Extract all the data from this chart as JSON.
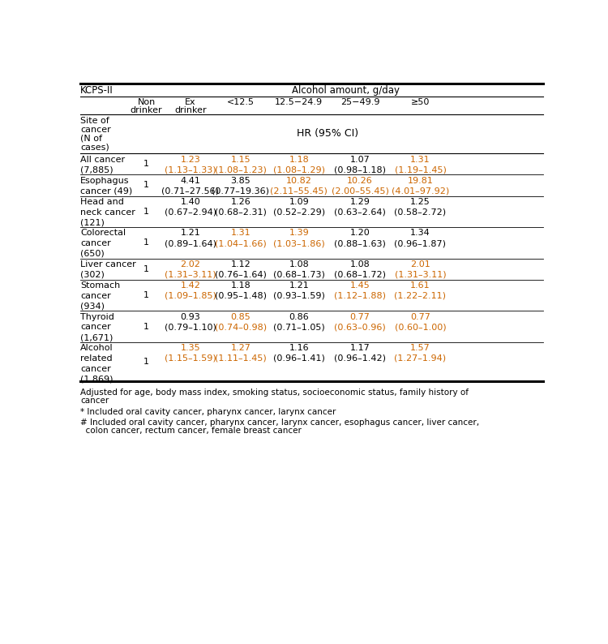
{
  "title_left": "KCPS-II",
  "title_right": "Alcohol amount, g/day",
  "col_headers_line1": [
    "Non",
    "Ex",
    "<12.5",
    "12.5−24.9",
    "25−49.9",
    "≥50"
  ],
  "col_headers_line2": [
    "drinker",
    "drinker",
    "",
    "",
    "",
    ""
  ],
  "subheader_left": "Site of\ncancer\n(N of\ncases)",
  "subheader_right": "HR (95% CI)",
  "rows": [
    {
      "label": "All cancer\n(7,885)",
      "non_drinker": "1",
      "values": [
        "1.23\n(1.13–1.33)",
        "1.15\n(1.08–1.23)",
        "1.18\n(1.08–1.29)",
        "1.07\n(0.98–1.18)",
        "1.31\n(1.19–1.45)"
      ],
      "value_colors": [
        "#cc6600",
        "#cc6600",
        "#cc6600",
        "#000000",
        "#cc6600"
      ]
    },
    {
      "label": "Esophagus\ncancer (49)",
      "non_drinker": "1",
      "values": [
        "4.41\n(0.71–27.56)",
        "3.85\n(0.77–19.36)",
        "10.82\n(2.11–55.45)",
        "10.26\n(2.00–55.45)",
        "19.81\n(4.01–97.92)"
      ],
      "value_colors": [
        "#000000",
        "#000000",
        "#cc6600",
        "#cc6600",
        "#cc6600"
      ]
    },
    {
      "label": "Head and\nneck cancer\n(121)",
      "non_drinker": "1",
      "values": [
        "1.40\n(0.67–2.94)",
        "1.26\n(0.68–2.31)",
        "1.09\n(0.52–2.29)",
        "1.29\n(0.63–2.64)",
        "1.25\n(0.58–2.72)"
      ],
      "value_colors": [
        "#000000",
        "#000000",
        "#000000",
        "#000000",
        "#000000"
      ]
    },
    {
      "label": "Colorectal\ncancer\n(650)",
      "non_drinker": "1",
      "values": [
        "1.21\n(0.89–1.64)",
        "1.31\n(1.04–1.66)",
        "1.39\n(1.03–1.86)",
        "1.20\n(0.88–1.63)",
        "1.34\n(0.96–1.87)"
      ],
      "value_colors": [
        "#000000",
        "#cc6600",
        "#cc6600",
        "#000000",
        "#000000"
      ]
    },
    {
      "label": "Liver cancer\n(302)",
      "non_drinker": "1",
      "values": [
        "2.02\n(1.31–3.11)",
        "1.12\n(0.76–1.64)",
        "1.08\n(0.68–1.73)",
        "1.08\n(0.68–1.72)",
        "2.01\n(1.31–3.11)"
      ],
      "value_colors": [
        "#cc6600",
        "#000000",
        "#000000",
        "#000000",
        "#cc6600"
      ]
    },
    {
      "label": "Stomach\ncancer\n(934)",
      "non_drinker": "1",
      "values": [
        "1.42\n(1.09–1.85)",
        "1.18\n(0.95–1.48)",
        "1.21\n(0.93–1.59)",
        "1.45\n(1.12–1.88)",
        "1.61\n(1.22–2.11)"
      ],
      "value_colors": [
        "#cc6600",
        "#000000",
        "#000000",
        "#cc6600",
        "#cc6600"
      ]
    },
    {
      "label": "Thyroid\ncancer\n(1,671)",
      "non_drinker": "1",
      "values": [
        "0.93\n(0.79–1.10)",
        "0.85\n(0.74–0.98)",
        "0.86\n(0.71–1.05)",
        "0.77\n(0.63–0.96)",
        "0.77\n(0.60–1.00)"
      ],
      "value_colors": [
        "#000000",
        "#cc6600",
        "#000000",
        "#cc6600",
        "#cc6600"
      ]
    },
    {
      "label": "Alcohol\nrelated\ncancer\n(1,869)",
      "non_drinker": "1",
      "values": [
        "1.35\n(1.15–1.59)",
        "1.27\n(1.11–1.45)",
        "1.16\n(0.96–1.41)",
        "1.17\n(0.96–1.42)",
        "1.57\n(1.27–1.94)"
      ],
      "value_colors": [
        "#cc6600",
        "#cc6600",
        "#000000",
        "#000000",
        "#cc6600"
      ]
    }
  ],
  "footnote1": "Adjusted for age, body mass index, smoking status, socioeconomic status, family history of",
  "footnote1b": "cancer",
  "footnote2": "* Included oral cavity cancer, pharynx cancer, larynx cancer",
  "footnote3": "# Included oral cavity cancer, pharynx cancer, larynx cancer, esophagus cancer, liver cancer,",
  "footnote3b": "  colon cancer, rectum cancer, female breast cancer",
  "text_color_black": "#000000",
  "text_color_orange": "#cc6600",
  "bg_color": "#ffffff",
  "font_size": 8.0,
  "small_font_size": 7.5
}
